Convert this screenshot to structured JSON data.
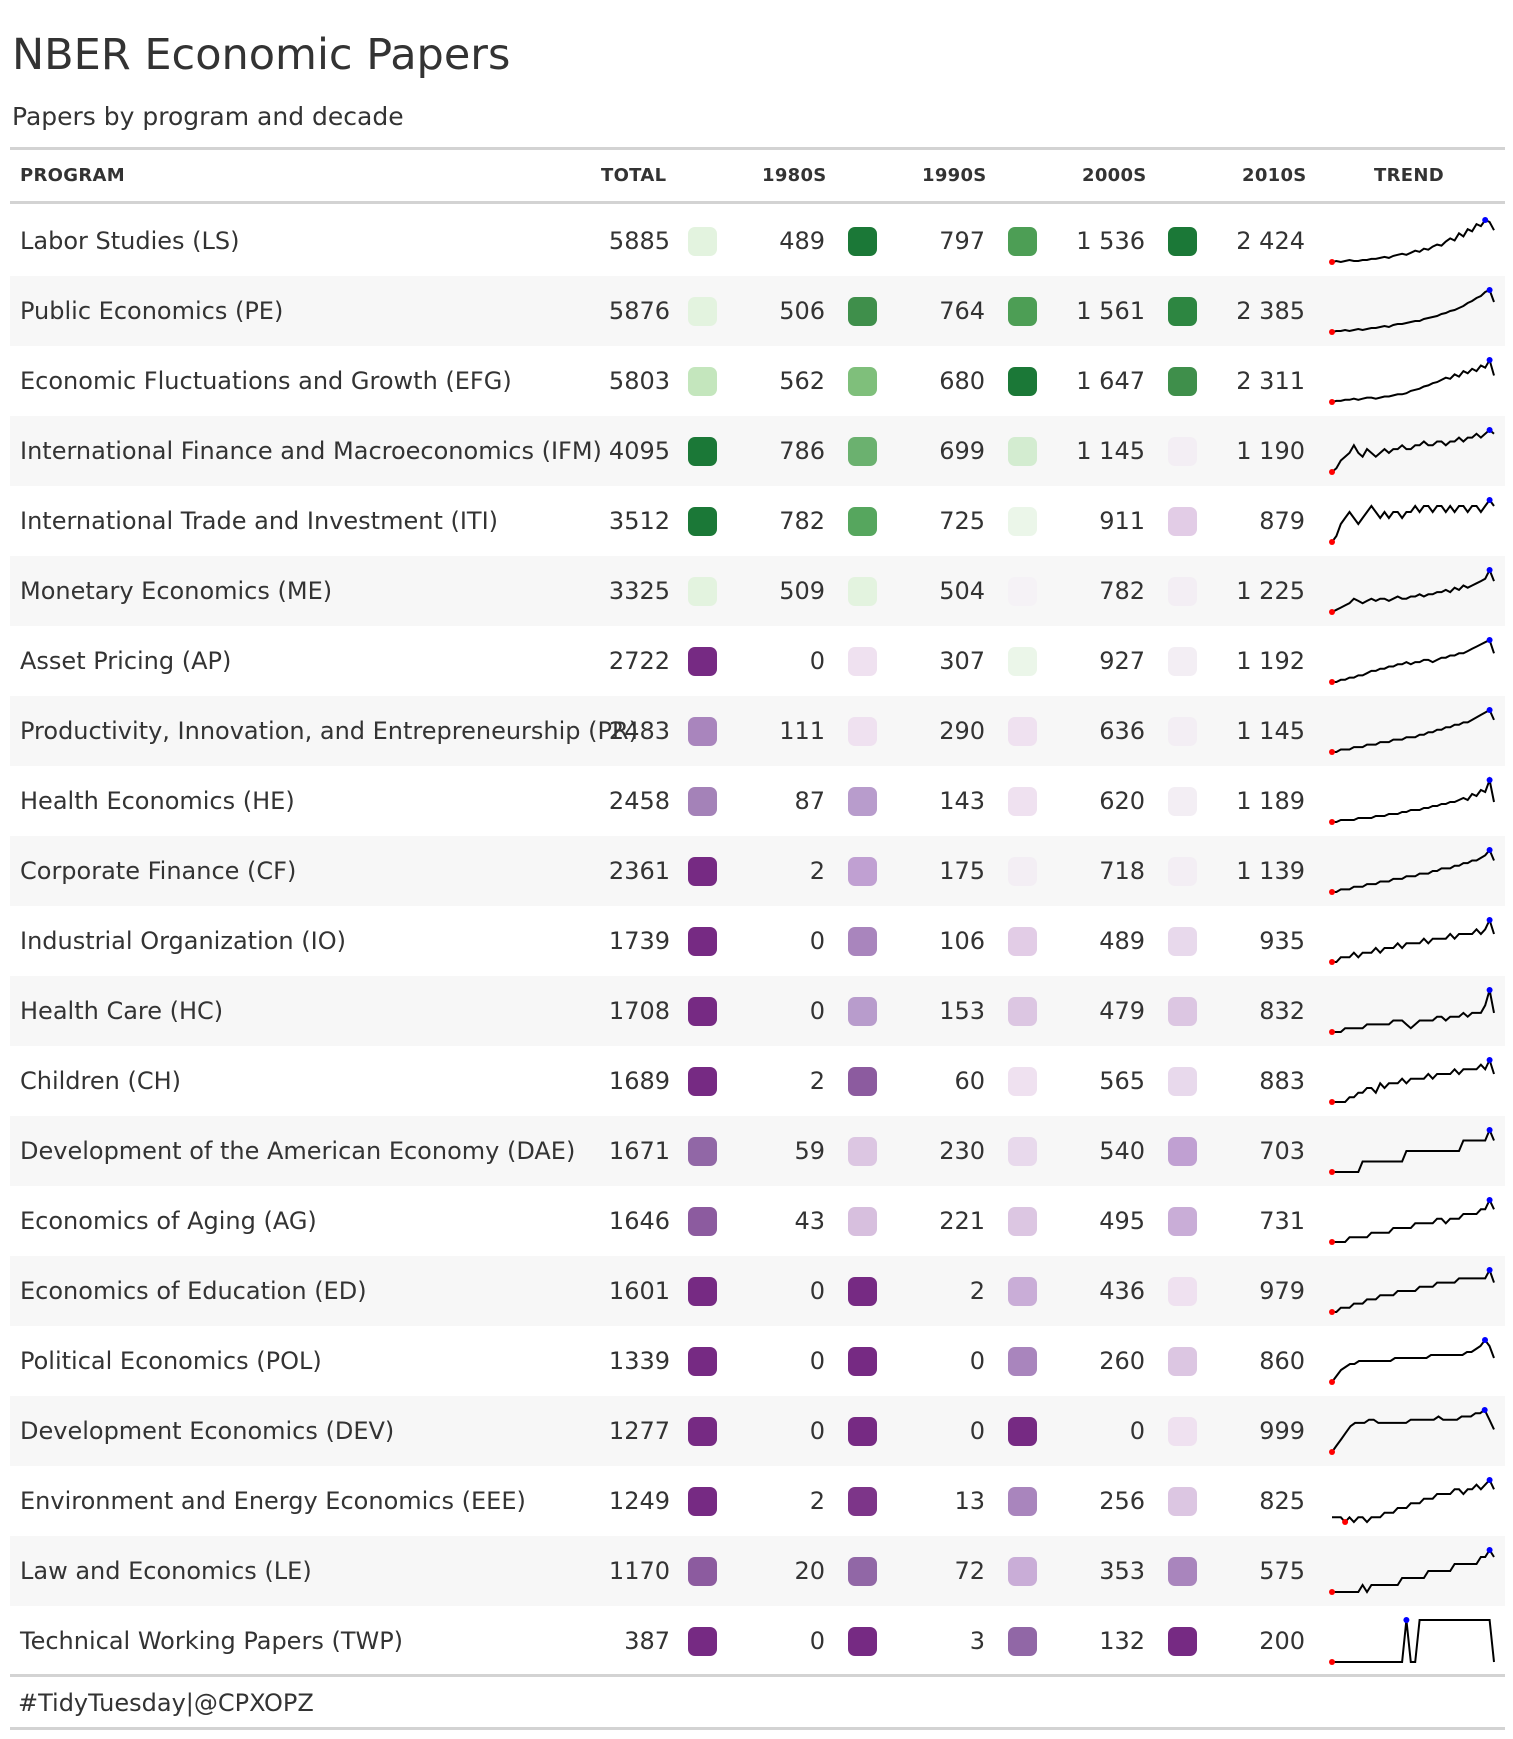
{
  "header": {
    "title": "NBER Economic Papers",
    "subtitle": "Papers by program and decade"
  },
  "columns": {
    "program": "PROGRAM",
    "total": "TOTAL",
    "d1980": "1980S",
    "d1990": "1990S",
    "d2000": "2000S",
    "d2010": "2010S",
    "trend": "TREND"
  },
  "colors": {
    "green_dark": "#1b7837",
    "green_mid": "#5aae61",
    "green_light": "#a6dba0",
    "green_pale": "#d9f0d3",
    "purple_dark": "#762a83",
    "purple_mid": "#9970ab",
    "purple_light": "#c2a5cf",
    "purple_pale": "#e7d4e8",
    "neutral": "#f3eef4",
    "spark_line": "#000000",
    "spark_min": "#ff0000",
    "spark_max": "#0000ff"
  },
  "rows": [
    {
      "program": "Labor Studies (LS)",
      "total": "5885",
      "v1980": "489",
      "v1990": "797",
      "v2000": "1 536",
      "v2010": "2 424",
      "swatches": [
        "#e3f3df",
        "#1b7837",
        "#4d9e55",
        "#1b7837"
      ],
      "trend": [
        5,
        6,
        5,
        6,
        7,
        6,
        6,
        7,
        7,
        8,
        8,
        9,
        10,
        9,
        11,
        12,
        13,
        12,
        14,
        16,
        15,
        18,
        17,
        20,
        22,
        21,
        25,
        28,
        26,
        33,
        30,
        37,
        35,
        42,
        40,
        46,
        44,
        36
      ]
    },
    {
      "program": "Public Economics (PE)",
      "total": "5876",
      "v1980": "506",
      "v1990": "764",
      "v2000": "1 561",
      "v2010": "2 385",
      "swatches": [
        "#e3f3df",
        "#3f8f4b",
        "#4d9e55",
        "#2d8641"
      ],
      "trend": [
        5,
        6,
        6,
        7,
        6,
        7,
        8,
        7,
        8,
        9,
        9,
        10,
        11,
        10,
        12,
        13,
        13,
        14,
        15,
        16,
        16,
        18,
        19,
        20,
        21,
        23,
        24,
        26,
        27,
        29,
        31,
        34,
        36,
        39,
        41,
        45,
        47,
        35
      ]
    },
    {
      "program": "Economic Fluctuations and Growth (EFG)",
      "total": "5803",
      "v1980": "562",
      "v1990": "680",
      "v2000": "1 647",
      "v2010": "2 311",
      "swatches": [
        "#c4e6bd",
        "#7fbf7b",
        "#1b7837",
        "#3f8f4b"
      ],
      "trend": [
        8,
        9,
        9,
        10,
        10,
        11,
        10,
        11,
        12,
        12,
        11,
        12,
        13,
        13,
        14,
        15,
        15,
        16,
        18,
        19,
        20,
        22,
        23,
        25,
        26,
        28,
        30,
        29,
        33,
        31,
        36,
        34,
        38,
        36,
        41,
        39,
        46,
        32
      ]
    },
    {
      "program": "International Finance and Macroeconomics (IFM)",
      "total": "4095",
      "v1980": "786",
      "v1990": "699",
      "v2000": "1 145",
      "v2010": "1 190",
      "swatches": [
        "#1b7837",
        "#6bb16f",
        "#d3ecd0",
        "#f3eef4"
      ],
      "trend": [
        6,
        7,
        9,
        10,
        11,
        13,
        11,
        10,
        12,
        11,
        10,
        11,
        12,
        11,
        12,
        12,
        13,
        12,
        12,
        13,
        13,
        14,
        13,
        13,
        14,
        14,
        13,
        14,
        14,
        15,
        14,
        15,
        15,
        16,
        15,
        16,
        17,
        16
      ]
    },
    {
      "program": "International Trade and Investment (ITI)",
      "total": "3512",
      "v1980": "782",
      "v1990": "725",
      "v2000": "911",
      "v2010": "879",
      "swatches": [
        "#1b7837",
        "#56a65e",
        "#ebf6e9",
        "#e2cce6"
      ],
      "trend": [
        7,
        8,
        10,
        11,
        12,
        11,
        10,
        11,
        12,
        13,
        12,
        11,
        12,
        11,
        12,
        12,
        11,
        12,
        12,
        13,
        12,
        13,
        13,
        12,
        13,
        13,
        12,
        13,
        12,
        13,
        13,
        12,
        13,
        13,
        12,
        13,
        14,
        13
      ]
    },
    {
      "program": "Monetary Economics (ME)",
      "total": "3325",
      "v1980": "509",
      "v1990": "504",
      "v2000": "782",
      "v2010": "1 225",
      "swatches": [
        "#e3f3df",
        "#e3f3df",
        "#f5f2f6",
        "#f3eef4"
      ],
      "trend": [
        6,
        7,
        8,
        9,
        10,
        12,
        11,
        10,
        11,
        12,
        11,
        12,
        12,
        11,
        12,
        13,
        12,
        12,
        13,
        13,
        14,
        13,
        14,
        14,
        15,
        15,
        16,
        15,
        17,
        16,
        18,
        17,
        18,
        19,
        20,
        21,
        25,
        20
      ]
    },
    {
      "program": "Asset Pricing (AP)",
      "total": "2722",
      "v1980": "0",
      "v1990": "307",
      "v2000": "927",
      "v2010": "1 192",
      "swatches": [
        "#762a83",
        "#efe1f0",
        "#ebf6e9",
        "#f3eef4"
      ],
      "trend": [
        4,
        4,
        5,
        5,
        6,
        6,
        7,
        7,
        8,
        9,
        9,
        10,
        10,
        11,
        11,
        12,
        12,
        13,
        12,
        13,
        13,
        14,
        14,
        13,
        14,
        15,
        15,
        16,
        16,
        17,
        17,
        18,
        19,
        20,
        21,
        22,
        23,
        17
      ]
    },
    {
      "program": "Productivity, Innovation, and Entrepreneurship (PR)",
      "total": "2483",
      "v1980": "111",
      "v1990": "290",
      "v2000": "636",
      "v2010": "1 145",
      "swatches": [
        "#a985bd",
        "#efe1f0",
        "#efe1f0",
        "#f3eef4"
      ],
      "trend": [
        2,
        2,
        3,
        3,
        3,
        4,
        4,
        4,
        5,
        5,
        5,
        6,
        6,
        6,
        7,
        7,
        7,
        8,
        8,
        8,
        9,
        9,
        10,
        10,
        11,
        11,
        12,
        12,
        13,
        13,
        14,
        14,
        15,
        16,
        17,
        18,
        19,
        15
      ]
    },
    {
      "program": "Health Economics (HE)",
      "total": "2458",
      "v1980": "87",
      "v1990": "143",
      "v2000": "620",
      "v2010": "1 189",
      "swatches": [
        "#a482b8",
        "#b89ccc",
        "#efe1f0",
        "#f3eef4"
      ],
      "trend": [
        2,
        2,
        3,
        3,
        3,
        3,
        4,
        4,
        4,
        4,
        5,
        5,
        5,
        6,
        6,
        6,
        7,
        7,
        8,
        8,
        8,
        9,
        9,
        10,
        10,
        11,
        11,
        12,
        12,
        13,
        14,
        13,
        16,
        15,
        18,
        17,
        23,
        12
      ]
    },
    {
      "program": "Corporate Finance (CF)",
      "total": "2361",
      "v1980": "2",
      "v1990": "175",
      "v2000": "718",
      "v2010": "1 139",
      "swatches": [
        "#762a83",
        "#c0a0d2",
        "#f3eef4",
        "#f3eef4"
      ],
      "trend": [
        4,
        4,
        5,
        5,
        5,
        6,
        6,
        6,
        7,
        7,
        7,
        8,
        8,
        8,
        9,
        9,
        9,
        10,
        10,
        10,
        11,
        11,
        11,
        12,
        12,
        13,
        13,
        13,
        14,
        14,
        15,
        15,
        16,
        16,
        17,
        18,
        20,
        16
      ]
    },
    {
      "program": "Industrial Organization (IO)",
      "total": "1739",
      "v1980": "0",
      "v1990": "106",
      "v2000": "489",
      "v2010": "935",
      "swatches": [
        "#762a83",
        "#a985bd",
        "#e2cce6",
        "#e8d9ec"
      ],
      "trend": [
        5,
        5,
        6,
        6,
        6,
        7,
        6,
        7,
        7,
        7,
        8,
        7,
        8,
        8,
        8,
        9,
        8,
        9,
        9,
        9,
        9,
        10,
        9,
        10,
        10,
        10,
        10,
        11,
        10,
        11,
        11,
        11,
        11,
        12,
        11,
        12,
        14,
        11
      ]
    },
    {
      "program": "Health Care (HC)",
      "total": "1708",
      "v1980": "0",
      "v1990": "153",
      "v2000": "479",
      "v2010": "832",
      "swatches": [
        "#762a83",
        "#b89ccc",
        "#dcc6e2",
        "#dcc6e2"
      ],
      "trend": [
        5,
        5,
        5,
        6,
        6,
        6,
        6,
        6,
        7,
        7,
        7,
        7,
        7,
        7,
        8,
        8,
        8,
        7,
        6,
        7,
        8,
        8,
        8,
        8,
        9,
        9,
        8,
        9,
        9,
        9,
        10,
        9,
        10,
        10,
        10,
        12,
        16,
        10
      ]
    },
    {
      "program": "Children (CH)",
      "total": "1689",
      "v1980": "2",
      "v1990": "60",
      "v2000": "565",
      "v2010": "883",
      "swatches": [
        "#762a83",
        "#8c5b9f",
        "#efe1f0",
        "#e8d9ec"
      ],
      "trend": [
        5,
        5,
        5,
        5,
        6,
        6,
        7,
        7,
        8,
        8,
        7,
        9,
        8,
        9,
        9,
        9,
        10,
        9,
        10,
        10,
        10,
        10,
        11,
        10,
        11,
        11,
        11,
        11,
        12,
        11,
        12,
        12,
        12,
        12,
        13,
        12,
        14,
        11
      ]
    },
    {
      "program": "Development of the American Economy (DAE)",
      "total": "1671",
      "v1980": "59",
      "v1990": "230",
      "v2000": "540",
      "v2010": "703",
      "swatches": [
        "#9167a6",
        "#dcc6e2",
        "#e8d9ec",
        "#c0a0d2"
      ],
      "trend": [
        7,
        7,
        7,
        7,
        7,
        7,
        7,
        8,
        8,
        8,
        8,
        8,
        8,
        8,
        8,
        8,
        8,
        9,
        9,
        9,
        9,
        9,
        9,
        9,
        9,
        9,
        9,
        9,
        9,
        9,
        10,
        10,
        10,
        10,
        10,
        10,
        11,
        10
      ]
    },
    {
      "program": "Economics of Aging (AG)",
      "total": "1646",
      "v1980": "43",
      "v1990": "221",
      "v2000": "495",
      "v2010": "731",
      "swatches": [
        "#8c5b9f",
        "#d7bfde",
        "#dcc6e2",
        "#c9add7"
      ],
      "trend": [
        4,
        4,
        4,
        4,
        5,
        5,
        5,
        5,
        5,
        6,
        6,
        6,
        6,
        6,
        7,
        7,
        7,
        7,
        7,
        8,
        8,
        8,
        8,
        8,
        9,
        9,
        8,
        9,
        9,
        9,
        10,
        10,
        10,
        10,
        11,
        11,
        13,
        11
      ]
    },
    {
      "program": "Economics of Education (ED)",
      "total": "1601",
      "v1980": "0",
      "v1990": "2",
      "v2000": "436",
      "v2010": "979",
      "swatches": [
        "#762a83",
        "#762a83",
        "#c9add7",
        "#efe1f0"
      ],
      "trend": [
        3,
        3,
        4,
        4,
        4,
        5,
        5,
        5,
        6,
        6,
        6,
        7,
        7,
        7,
        7,
        8,
        8,
        8,
        8,
        8,
        9,
        9,
        9,
        9,
        10,
        10,
        10,
        10,
        10,
        11,
        11,
        11,
        11,
        11,
        11,
        11,
        13,
        10
      ]
    },
    {
      "program": "Political Economics (POL)",
      "total": "1339",
      "v1980": "0",
      "v1990": "0",
      "v2000": "260",
      "v2010": "860",
      "swatches": [
        "#762a83",
        "#762a83",
        "#a985bd",
        "#dcc6e2"
      ],
      "trend": [
        5,
        7,
        9,
        10,
        11,
        11,
        12,
        12,
        12,
        12,
        12,
        12,
        12,
        12,
        13,
        13,
        13,
        13,
        13,
        13,
        13,
        13,
        14,
        14,
        14,
        14,
        14,
        14,
        14,
        14,
        15,
        15,
        16,
        17,
        19,
        17,
        13
      ]
    },
    {
      "program": "Development Economics (DEV)",
      "total": "1277",
      "v1980": "0",
      "v1990": "0",
      "v2000": "0",
      "v2010": "999",
      "swatches": [
        "#762a83",
        "#762a83",
        "#762a83",
        "#efe1f0"
      ],
      "trend": [
        5,
        7,
        9,
        11,
        13,
        14,
        14,
        14,
        15,
        15,
        14,
        14,
        14,
        14,
        14,
        14,
        14,
        15,
        15,
        15,
        15,
        15,
        15,
        16,
        15,
        15,
        15,
        15,
        16,
        16,
        16,
        17,
        17,
        18,
        15,
        12
      ]
    },
    {
      "program": "Environment and Energy Economics (EEE)",
      "total": "1249",
      "v1980": "2",
      "v1990": "13",
      "v2000": "256",
      "v2010": "825",
      "swatches": [
        "#762a83",
        "#7d3589",
        "#a985bd",
        "#dcc6e2"
      ],
      "trend": [
        4,
        4,
        4,
        3,
        4,
        3,
        4,
        4,
        3,
        4,
        4,
        4,
        5,
        5,
        5,
        6,
        6,
        6,
        7,
        7,
        7,
        8,
        8,
        8,
        9,
        9,
        9,
        9,
        10,
        10,
        9,
        10,
        10,
        11,
        10,
        11,
        12,
        10
      ]
    },
    {
      "program": "Law and Economics (LE)",
      "total": "1170",
      "v1980": "20",
      "v1990": "72",
      "v2000": "353",
      "v2010": "575",
      "swatches": [
        "#8c5b9f",
        "#9167a6",
        "#c9add7",
        "#a985bd"
      ],
      "trend": [
        4,
        4,
        4,
        4,
        4,
        4,
        4,
        5,
        4,
        5,
        5,
        5,
        5,
        5,
        5,
        5,
        6,
        6,
        6,
        6,
        6,
        6,
        7,
        7,
        7,
        7,
        7,
        7,
        8,
        8,
        8,
        8,
        8,
        8,
        9,
        9,
        10,
        9
      ]
    },
    {
      "program": "Technical Working Papers (TWP)",
      "total": "387",
      "v1980": "0",
      "v1990": "3",
      "v2000": "132",
      "v2010": "200",
      "swatches": [
        "#762a83",
        "#762a83",
        "#9167a6",
        "#762a83"
      ],
      "trend": [
        5,
        5,
        5,
        5,
        5,
        5,
        5,
        5,
        5,
        5,
        5,
        5,
        5,
        5,
        5,
        5,
        5,
        6,
        5,
        5,
        6,
        6,
        6,
        6,
        6,
        6,
        6,
        6,
        6,
        6,
        6,
        6,
        6,
        6,
        6,
        6,
        6,
        5
      ]
    }
  ],
  "footer": "#TidyTuesday|@CPXOPZ"
}
